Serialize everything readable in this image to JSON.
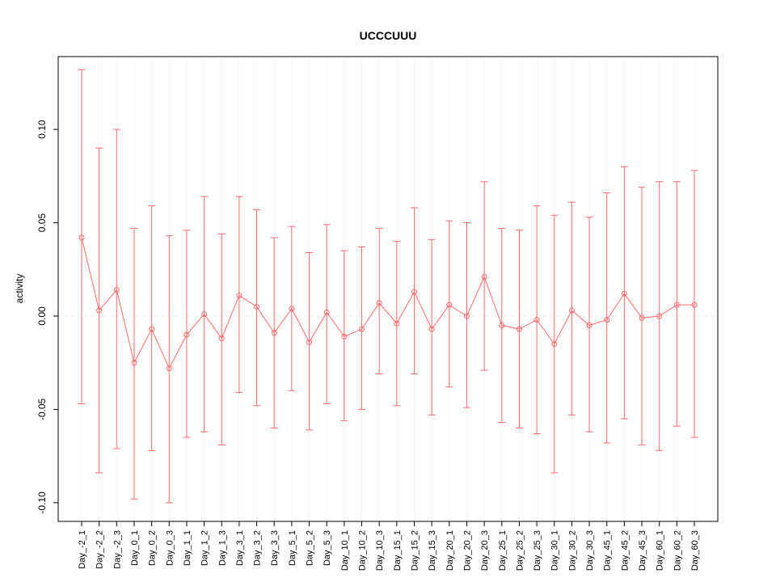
{
  "page": {
    "background": "#ffffff"
  },
  "chart_data": {
    "type": "line",
    "title": "UCCCUUU",
    "xlabel": "",
    "ylabel": "activity",
    "legend": "none",
    "grid": "dotted vertical gridline at each category; dotted horizontal line at y=0",
    "marker": "open-circle",
    "error_bars": true,
    "axis": {
      "ymin": -0.11,
      "ymax": 0.139
    },
    "yticks": [
      {
        "v": -0.1,
        "label": "-0.10"
      },
      {
        "v": -0.05,
        "label": "-0.05"
      },
      {
        "v": 0.0,
        "label": "0.00"
      },
      {
        "v": 0.05,
        "label": "0.05"
      },
      {
        "v": 0.1,
        "label": "0.10"
      }
    ],
    "categories": [
      "Day_-2_1",
      "Day_-2_2",
      "Day_-2_3",
      "Day_0_1",
      "Day_0_2",
      "Day_0_3",
      "Day_1_1",
      "Day_1_2",
      "Day_1_3",
      "Day_3_1",
      "Day_3_2",
      "Day_3_3",
      "Day_5_1",
      "Day_5_2",
      "Day_5_3",
      "Day_10_1",
      "Day_10_2",
      "Day_10_3",
      "Day_15_1",
      "Day_15_2",
      "Day_15_3",
      "Day_20_1",
      "Day_20_2",
      "Day_20_3",
      "Day_25_1",
      "Day_25_2",
      "Day_25_3",
      "Day_30_1",
      "Day_30_2",
      "Day_30_3",
      "Day_45_1",
      "Day_45_2",
      "Day_45_3",
      "Day_60_1",
      "Day_60_2",
      "Day_60_3"
    ],
    "series": [
      {
        "name": "activity",
        "values": [
          0.042,
          0.003,
          0.014,
          -0.025,
          -0.007,
          -0.028,
          -0.01,
          0.001,
          -0.012,
          0.011,
          0.005,
          -0.009,
          0.004,
          -0.014,
          0.002,
          -0.011,
          -0.007,
          0.007,
          -0.004,
          0.013,
          -0.007,
          0.006,
          0.0,
          0.021,
          -0.005,
          -0.007,
          -0.002,
          -0.015,
          0.003,
          -0.005,
          -0.002,
          0.012,
          -0.001,
          0.0,
          0.006,
          0.006
        ],
        "error_upper": [
          0.132,
          0.09,
          0.1,
          0.047,
          0.059,
          0.043,
          0.046,
          0.064,
          0.044,
          0.064,
          0.057,
          0.042,
          0.048,
          0.034,
          0.049,
          0.035,
          0.037,
          0.047,
          0.04,
          0.058,
          0.041,
          0.051,
          0.05,
          0.072,
          0.047,
          0.046,
          0.059,
          0.054,
          0.061,
          0.053,
          0.066,
          0.08,
          0.069,
          0.072,
          0.072,
          0.078
        ],
        "error_lower": [
          -0.047,
          -0.084,
          -0.071,
          -0.098,
          -0.072,
          -0.1,
          -0.065,
          -0.062,
          -0.069,
          -0.041,
          -0.048,
          -0.06,
          -0.04,
          -0.061,
          -0.047,
          -0.056,
          -0.05,
          -0.031,
          -0.048,
          -0.031,
          -0.053,
          -0.038,
          -0.049,
          -0.029,
          -0.057,
          -0.06,
          -0.063,
          -0.084,
          -0.053,
          -0.062,
          -0.068,
          -0.055,
          -0.069,
          -0.072,
          -0.059,
          -0.065
        ]
      }
    ],
    "colors": {
      "series": "#ff6a6a",
      "grid": "#dcdcdc",
      "zero_line": "#dcdcdc",
      "box": "#000000",
      "text": "#000000"
    }
  }
}
